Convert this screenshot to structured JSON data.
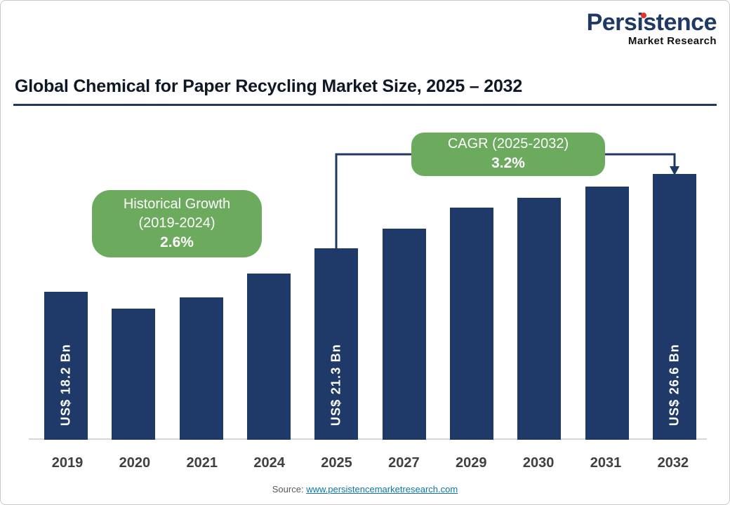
{
  "logo": {
    "brand": "Persistence",
    "sub": "Market Research",
    "brand_color": "#1f3864",
    "dot_color": "#e8312a"
  },
  "header": {
    "title": "Global Chemical for Paper Recycling Market Size, 2025 – 2032"
  },
  "callouts": {
    "historical": {
      "line1": "Historical Growth",
      "line2": "(2019-2024)",
      "value": "2.6%"
    },
    "cagr": {
      "line1": "CAGR (2025-2032)",
      "value": "3.2%"
    }
  },
  "chart_data": {
    "type": "bar",
    "title": "Global Chemical for Paper Recycling Market Size, 2025 – 2032",
    "unit": "US$ Bn",
    "categories": [
      "2019",
      "2020",
      "2021",
      "2024",
      "2025",
      "2027",
      "2029",
      "2030",
      "2031",
      "2032"
    ],
    "values": [
      18.2,
      17.0,
      17.8,
      19.5,
      21.3,
      22.7,
      24.2,
      24.9,
      25.7,
      26.6
    ],
    "labeled_values": {
      "2019": "US$ 18.2 Bn",
      "2025": "US$ 21.3 Bn",
      "2032": "US$ 26.6 Bn"
    },
    "bar_labels": [
      "US$ 18.2 Bn",
      "",
      "",
      "",
      "US$ 21.3 Bn",
      "",
      "",
      "",
      "",
      "US$ 26.6 Bn"
    ],
    "bar_color": "#1f3a68",
    "callout_color": "#6cab5e",
    "xlabel": "",
    "ylabel": "",
    "grid": false,
    "legend": "none",
    "notes": "y-axis hidden; bars not zero-based; values for unlabeled years estimated from bar heights"
  },
  "source": {
    "prefix": "Source: ",
    "link": "www.persistencemarketresearch.com"
  }
}
